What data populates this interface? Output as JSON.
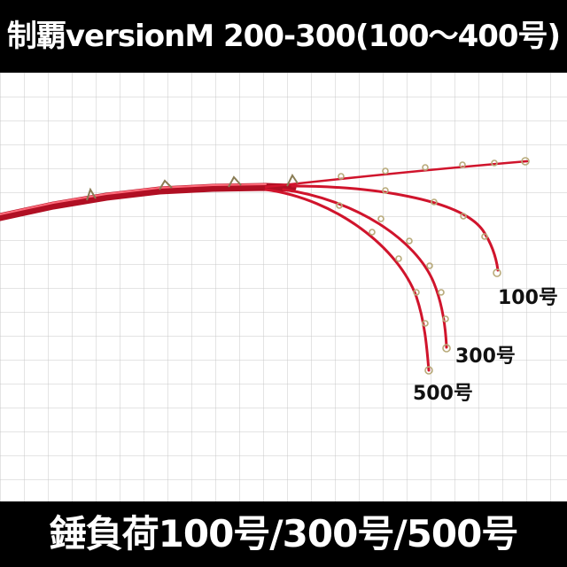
{
  "title": "制覇versionM 200-300(100〜400号)",
  "footer": "錘負荷100号/300号/500号",
  "load_labels": {
    "load_100": "100号",
    "load_300": "300号",
    "load_500": "500号"
  },
  "colors": {
    "bars": "#000000",
    "bar_text": "#ffffff",
    "grid": "#c8c8c8",
    "rod_blank": "#d0142c",
    "rod_highlight": "#ff6b7a",
    "guide_metal": "#b8aa7a"
  }
}
